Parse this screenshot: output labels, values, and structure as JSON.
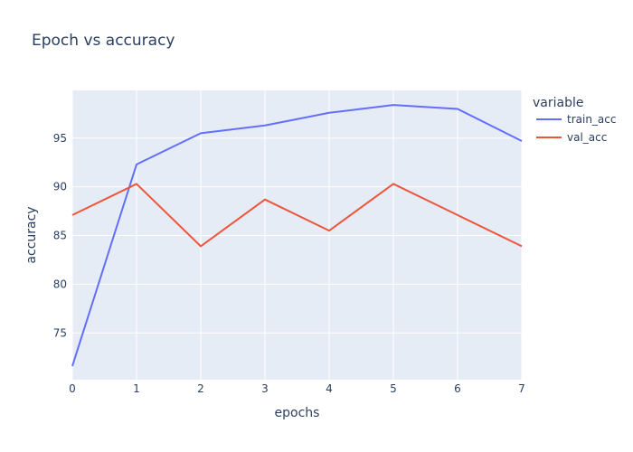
{
  "chart_data": {
    "type": "line",
    "title": "Epoch vs accuracy",
    "xlabel": "epochs",
    "ylabel": "accuracy",
    "x": [
      0,
      1,
      2,
      3,
      4,
      5,
      6,
      7
    ],
    "xlim": [
      0,
      7
    ],
    "ylim": [
      70.2,
      99.9
    ],
    "xticks": [
      0,
      1,
      2,
      3,
      4,
      5,
      6,
      7
    ],
    "yticks": [
      75,
      80,
      85,
      90,
      95
    ],
    "grid": true,
    "legend": {
      "title": "variable",
      "position": "top-right"
    },
    "background_color": "#E5ECF6",
    "series": [
      {
        "name": "train_acc",
        "color": "#636EFA",
        "values": [
          71.6,
          92.3,
          95.5,
          96.3,
          97.6,
          98.4,
          98.0,
          94.7
        ]
      },
      {
        "name": "val_acc",
        "color": "#EF553B",
        "values": [
          87.1,
          90.3,
          83.9,
          88.7,
          85.5,
          90.3,
          87.1,
          83.9
        ]
      }
    ]
  }
}
